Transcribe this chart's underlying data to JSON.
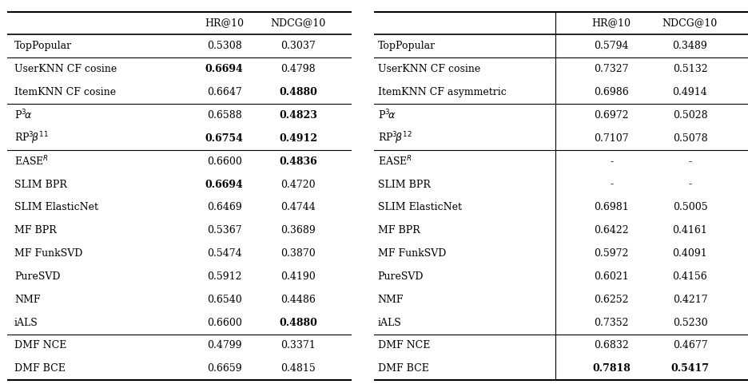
{
  "left_table": {
    "sections": [
      {
        "rows": [
          {
            "label": "TopPopular",
            "hr": "0.5308",
            "ndcg": "0.3037",
            "bold_hr": false,
            "bold_ndcg": false
          }
        ]
      },
      {
        "rows": [
          {
            "label": "UserKNN CF cosine",
            "hr": "0.6694",
            "ndcg": "0.4798",
            "bold_hr": true,
            "bold_ndcg": false
          },
          {
            "label": "ItemKNN CF cosine",
            "hr": "0.6647",
            "ndcg": "0.4880",
            "bold_hr": false,
            "bold_ndcg": true
          }
        ]
      },
      {
        "rows": [
          {
            "label": "P$^3\\!\\alpha$",
            "hr": "0.6588",
            "ndcg": "0.4823",
            "bold_hr": false,
            "bold_ndcg": true
          },
          {
            "label": "RP$^3\\!\\beta^{11}$",
            "hr": "0.6754",
            "ndcg": "0.4912",
            "bold_hr": true,
            "bold_ndcg": true
          }
        ]
      },
      {
        "rows": [
          {
            "label": "EASE$^R$",
            "hr": "0.6600",
            "ndcg": "0.4836",
            "bold_hr": false,
            "bold_ndcg": true
          },
          {
            "label": "SLIM BPR",
            "hr": "0.6694",
            "ndcg": "0.4720",
            "bold_hr": true,
            "bold_ndcg": false
          },
          {
            "label": "SLIM ElasticNet",
            "hr": "0.6469",
            "ndcg": "0.4744",
            "bold_hr": false,
            "bold_ndcg": false
          },
          {
            "label": "MF BPR",
            "hr": "0.5367",
            "ndcg": "0.3689",
            "bold_hr": false,
            "bold_ndcg": false
          },
          {
            "label": "MF FunkSVD",
            "hr": "0.5474",
            "ndcg": "0.3870",
            "bold_hr": false,
            "bold_ndcg": false
          },
          {
            "label": "PureSVD",
            "hr": "0.5912",
            "ndcg": "0.4190",
            "bold_hr": false,
            "bold_ndcg": false
          },
          {
            "label": "NMF",
            "hr": "0.6540",
            "ndcg": "0.4486",
            "bold_hr": false,
            "bold_ndcg": false
          },
          {
            "label": "iALS",
            "hr": "0.6600",
            "ndcg": "0.4880",
            "bold_hr": false,
            "bold_ndcg": true
          }
        ]
      },
      {
        "rows": [
          {
            "label": "DMF NCE",
            "hr": "0.4799",
            "ndcg": "0.3371",
            "bold_hr": false,
            "bold_ndcg": false
          },
          {
            "label": "DMF BCE",
            "hr": "0.6659",
            "ndcg": "0.4815",
            "bold_hr": false,
            "bold_ndcg": false
          }
        ]
      }
    ]
  },
  "right_table": {
    "sections": [
      {
        "rows": [
          {
            "label": "TopPopular",
            "hr": "0.5794",
            "ndcg": "0.3489",
            "bold_hr": false,
            "bold_ndcg": false
          }
        ]
      },
      {
        "rows": [
          {
            "label": "UserKNN CF cosine",
            "hr": "0.7327",
            "ndcg": "0.5132",
            "bold_hr": false,
            "bold_ndcg": false
          },
          {
            "label": "ItemKNN CF asymmetric",
            "hr": "0.6986",
            "ndcg": "0.4914",
            "bold_hr": false,
            "bold_ndcg": false
          }
        ]
      },
      {
        "rows": [
          {
            "label": "P$^3\\!\\alpha$",
            "hr": "0.6972",
            "ndcg": "0.5028",
            "bold_hr": false,
            "bold_ndcg": false
          },
          {
            "label": "RP$^3\\!\\beta^{12}$",
            "hr": "0.7107",
            "ndcg": "0.5078",
            "bold_hr": false,
            "bold_ndcg": false
          }
        ]
      },
      {
        "rows": [
          {
            "label": "EASE$^R$",
            "hr": "-",
            "ndcg": "-",
            "bold_hr": false,
            "bold_ndcg": false
          },
          {
            "label": "SLIM BPR",
            "hr": "-",
            "ndcg": "-",
            "bold_hr": false,
            "bold_ndcg": false
          },
          {
            "label": "SLIM ElasticNet",
            "hr": "0.6981",
            "ndcg": "0.5005",
            "bold_hr": false,
            "bold_ndcg": false
          },
          {
            "label": "MF BPR",
            "hr": "0.6422",
            "ndcg": "0.4161",
            "bold_hr": false,
            "bold_ndcg": false
          },
          {
            "label": "MF FunkSVD",
            "hr": "0.5972",
            "ndcg": "0.4091",
            "bold_hr": false,
            "bold_ndcg": false
          },
          {
            "label": "PureSVD",
            "hr": "0.6021",
            "ndcg": "0.4156",
            "bold_hr": false,
            "bold_ndcg": false
          },
          {
            "label": "NMF",
            "hr": "0.6252",
            "ndcg": "0.4217",
            "bold_hr": false,
            "bold_ndcg": false
          },
          {
            "label": "iALS",
            "hr": "0.7352",
            "ndcg": "0.5230",
            "bold_hr": false,
            "bold_ndcg": false
          }
        ]
      },
      {
        "rows": [
          {
            "label": "DMF NCE",
            "hr": "0.6832",
            "ndcg": "0.4677",
            "bold_hr": false,
            "bold_ndcg": false
          },
          {
            "label": "DMF BCE",
            "hr": "0.7818",
            "ndcg": "0.5417",
            "bold_hr": true,
            "bold_ndcg": true
          }
        ]
      }
    ]
  },
  "bg_color": "#ffffff",
  "font_size": 9.0,
  "line_lw_thick": 1.5,
  "line_lw_thin": 0.8,
  "line_lw_header": 1.2
}
